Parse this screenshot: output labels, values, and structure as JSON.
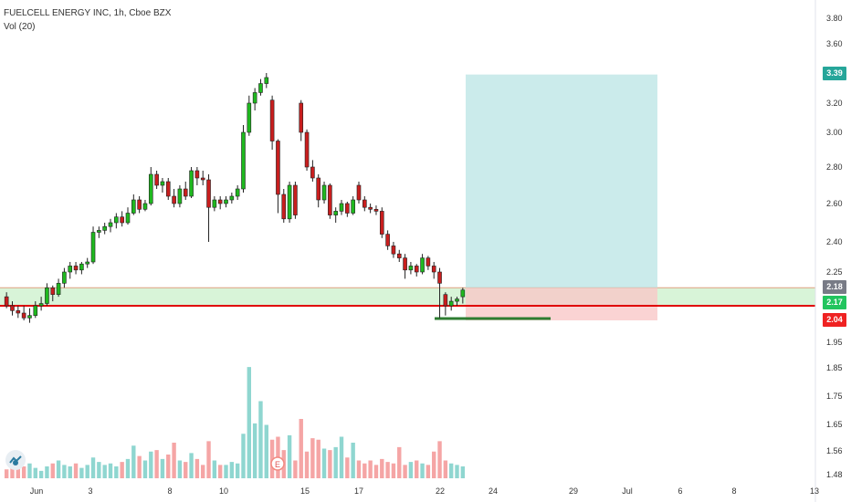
{
  "header": {
    "title": "FUELCELL ENERGY INC, 1h, Cboe BZX",
    "indicator": "Vol (20)"
  },
  "price_tags": [
    {
      "label": "3.39",
      "color": "#26a69a"
    },
    {
      "label": "2.18",
      "color": "#787b86"
    },
    {
      "label": "2.17",
      "color": "#22c55e"
    },
    {
      "label": "2.04",
      "color": "#ef2222"
    }
  ],
  "event_marker": "E",
  "logo_icon": "tradingview-logo-icon",
  "chart_data": {
    "type": "candlestick",
    "title": "FUELCELL ENERGY INC, 1h, Cboe BZX",
    "y_ticks": [
      "3.80",
      "3.60",
      "3.40",
      "3.20",
      "3.00",
      "2.80",
      "2.60",
      "2.40",
      "2.25",
      "2.10",
      "1.95",
      "1.85",
      "1.75",
      "1.65",
      "1.56",
      "1.48"
    ],
    "x_ticks": [
      "Jun",
      "3",
      "8",
      "10",
      "15",
      "17",
      "22",
      "24",
      "29",
      "Jul",
      "6",
      "8",
      "13"
    ],
    "ylim": [
      1.48,
      3.85
    ],
    "grid": false,
    "levels": {
      "current": 2.18,
      "support": 2.1,
      "stop": 2.04,
      "target": 3.39
    },
    "position_tool": {
      "entry": 2.18,
      "target": 3.39,
      "stop": 2.04
    },
    "candles": [
      [
        2.14,
        2.16,
        2.1,
        2.09
      ],
      [
        2.1,
        2.12,
        2.08,
        2.06
      ],
      [
        2.08,
        2.1,
        2.07,
        2.05
      ],
      [
        2.07,
        2.1,
        2.05,
        2.04
      ],
      [
        2.05,
        2.09,
        2.06,
        2.03
      ],
      [
        2.06,
        2.12,
        2.1,
        2.05
      ],
      [
        2.1,
        2.14,
        2.11,
        2.08
      ],
      [
        2.11,
        2.2,
        2.18,
        2.1
      ],
      [
        2.18,
        2.19,
        2.15,
        2.12
      ],
      [
        2.15,
        2.22,
        2.2,
        2.14
      ],
      [
        2.2,
        2.27,
        2.25,
        2.18
      ],
      [
        2.25,
        2.3,
        2.28,
        2.22
      ],
      [
        2.28,
        2.3,
        2.26,
        2.24
      ],
      [
        2.26,
        2.3,
        2.29,
        2.24
      ],
      [
        2.29,
        2.32,
        2.3,
        2.27
      ],
      [
        2.3,
        2.48,
        2.45,
        2.29
      ],
      [
        2.45,
        2.48,
        2.46,
        2.42
      ],
      [
        2.46,
        2.5,
        2.48,
        2.44
      ],
      [
        2.48,
        2.52,
        2.5,
        2.45
      ],
      [
        2.5,
        2.55,
        2.53,
        2.47
      ],
      [
        2.53,
        2.56,
        2.5,
        2.48
      ],
      [
        2.5,
        2.58,
        2.55,
        2.49
      ],
      [
        2.55,
        2.65,
        2.62,
        2.54
      ],
      [
        2.62,
        2.64,
        2.57,
        2.55
      ],
      [
        2.57,
        2.62,
        2.6,
        2.56
      ],
      [
        2.6,
        2.8,
        2.76,
        2.59
      ],
      [
        2.76,
        2.78,
        2.7,
        2.68
      ],
      [
        2.7,
        2.74,
        2.72,
        2.66
      ],
      [
        2.72,
        2.74,
        2.64,
        2.62
      ],
      [
        2.64,
        2.68,
        2.6,
        2.58
      ],
      [
        2.6,
        2.7,
        2.68,
        2.58
      ],
      [
        2.68,
        2.72,
        2.64,
        2.62
      ],
      [
        2.64,
        2.8,
        2.78,
        2.63
      ],
      [
        2.78,
        2.8,
        2.74,
        2.7
      ],
      [
        2.74,
        2.78,
        2.73,
        2.7
      ],
      [
        2.73,
        2.76,
        2.58,
        2.4
      ],
      [
        2.58,
        2.64,
        2.62,
        2.56
      ],
      [
        2.62,
        2.64,
        2.6,
        2.57
      ],
      [
        2.6,
        2.64,
        2.62,
        2.58
      ],
      [
        2.62,
        2.66,
        2.64,
        2.6
      ],
      [
        2.64,
        2.7,
        2.68,
        2.62
      ],
      [
        2.68,
        3.05,
        3.0,
        2.66
      ],
      [
        3.0,
        3.25,
        3.2,
        2.98
      ],
      [
        3.2,
        3.3,
        3.27,
        3.15
      ],
      [
        3.27,
        3.36,
        3.33,
        3.25
      ],
      [
        3.33,
        3.4,
        3.37,
        3.3
      ],
      [
        3.22,
        3.25,
        2.95,
        2.9
      ],
      [
        2.95,
        2.96,
        2.65,
        2.55
      ],
      [
        2.65,
        2.68,
        2.52,
        2.5
      ],
      [
        2.52,
        2.72,
        2.7,
        2.5
      ],
      [
        2.7,
        2.72,
        2.54,
        2.52
      ],
      [
        3.2,
        3.22,
        3.0,
        2.95
      ],
      [
        3.0,
        3.02,
        2.8,
        2.78
      ],
      [
        2.8,
        2.84,
        2.74,
        2.72
      ],
      [
        2.74,
        2.76,
        2.62,
        2.58
      ],
      [
        2.62,
        2.72,
        2.7,
        2.6
      ],
      [
        2.7,
        2.71,
        2.54,
        2.52
      ],
      [
        2.54,
        2.58,
        2.56,
        2.5
      ],
      [
        2.56,
        2.62,
        2.6,
        2.54
      ],
      [
        2.6,
        2.61,
        2.55,
        2.53
      ],
      [
        2.55,
        2.64,
        2.62,
        2.54
      ],
      [
        2.7,
        2.72,
        2.62,
        2.6
      ],
      [
        2.62,
        2.64,
        2.58,
        2.56
      ],
      [
        2.58,
        2.6,
        2.57,
        2.55
      ],
      [
        2.57,
        2.59,
        2.56,
        2.54
      ],
      [
        2.56,
        2.58,
        2.44,
        2.42
      ],
      [
        2.44,
        2.46,
        2.38,
        2.36
      ],
      [
        2.38,
        2.4,
        2.34,
        2.32
      ],
      [
        2.34,
        2.36,
        2.32,
        2.3
      ],
      [
        2.32,
        2.34,
        2.26,
        2.22
      ],
      [
        2.26,
        2.3,
        2.28,
        2.24
      ],
      [
        2.28,
        2.29,
        2.25,
        2.23
      ],
      [
        2.25,
        2.34,
        2.32,
        2.24
      ],
      [
        2.32,
        2.33,
        2.28,
        2.26
      ],
      [
        2.28,
        2.3,
        2.25,
        2.22
      ],
      [
        2.25,
        2.27,
        2.2,
        2.05
      ],
      [
        2.15,
        2.16,
        2.1,
        2.06
      ],
      [
        2.1,
        2.14,
        2.12,
        2.08
      ],
      [
        2.12,
        2.14,
        2.13,
        2.1
      ],
      [
        2.14,
        2.18,
        2.17,
        2.11
      ]
    ],
    "volume": [
      6,
      7,
      9,
      8,
      10,
      7,
      5,
      8,
      10,
      12,
      9,
      8,
      10,
      7,
      9,
      14,
      11,
      9,
      10,
      8,
      11,
      13,
      22,
      15,
      12,
      18,
      19,
      13,
      16,
      24,
      12,
      11,
      17,
      13,
      9,
      25,
      12,
      9,
      9,
      11,
      10,
      30,
      75,
      37,
      52,
      36,
      26,
      28,
      19,
      29,
      12,
      40,
      18,
      27,
      26,
      20,
      19,
      21,
      28,
      14,
      24,
      12,
      10,
      12,
      9,
      13,
      11,
      10,
      21,
      9,
      11,
      12,
      10,
      9,
      18,
      25,
      12,
      10,
      9,
      8
    ],
    "volume_scale_max": 80
  }
}
